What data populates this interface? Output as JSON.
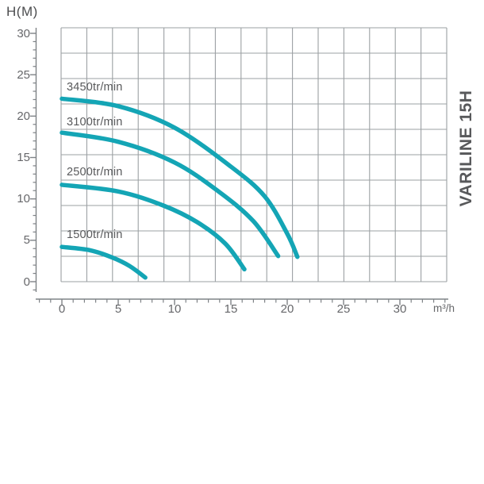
{
  "title_vertical": "VARILINE 15H",
  "y_axis_label": "H(M)",
  "x_axis_unit": "m³/h",
  "colors": {
    "curve": "#14a5b5",
    "grid": "#9ba0a3",
    "axis": "#7f8387",
    "tick_text": "#66676a",
    "label_text": "#58595b"
  },
  "chart_data": {
    "type": "line",
    "title": "VARILINE 15H",
    "xlabel": "m³/h",
    "ylabel": "H(M)",
    "xlim": [
      0,
      34
    ],
    "ylim": [
      0,
      30
    ],
    "x_major_ticks": [
      0,
      5,
      10,
      15,
      20,
      25,
      30
    ],
    "y_major_ticks": [
      0,
      5,
      10,
      15,
      20,
      25,
      30
    ],
    "minor_tick_step": 1,
    "grid": "on",
    "legend_position": "labels-above-curves",
    "series": [
      {
        "label": "3450tr/min",
        "rpm": 3450,
        "points": [
          [
            0,
            22.1
          ],
          [
            5,
            21.2
          ],
          [
            10,
            18.6
          ],
          [
            15,
            13.9
          ],
          [
            18,
            10.3
          ],
          [
            20,
            5.8
          ],
          [
            20.9,
            3.0
          ]
        ]
      },
      {
        "label": "3100tr/min",
        "rpm": 3100,
        "points": [
          [
            0,
            18.0
          ],
          [
            5,
            16.9
          ],
          [
            10,
            14.4
          ],
          [
            14,
            10.8
          ],
          [
            17,
            7.3
          ],
          [
            19.2,
            3.1
          ]
        ]
      },
      {
        "label": "2500tr/min",
        "rpm": 2500,
        "points": [
          [
            0,
            11.7
          ],
          [
            5,
            10.9
          ],
          [
            9,
            9.2
          ],
          [
            12,
            7.2
          ],
          [
            14.5,
            4.6
          ],
          [
            16.2,
            1.5
          ]
        ]
      },
      {
        "label": "1500tr/min",
        "rpm": 1500,
        "points": [
          [
            0,
            4.2
          ],
          [
            2.5,
            3.8
          ],
          [
            4.5,
            2.9
          ],
          [
            6,
            1.9
          ],
          [
            7.4,
            0.5
          ]
        ]
      }
    ]
  }
}
